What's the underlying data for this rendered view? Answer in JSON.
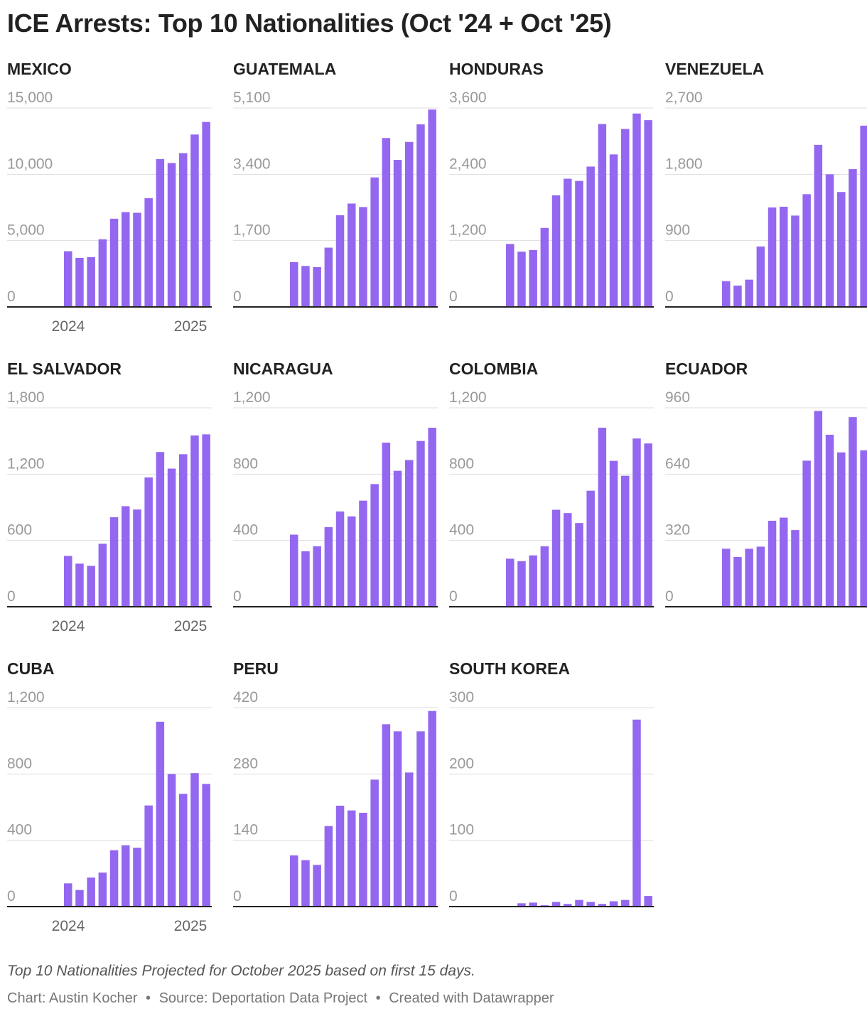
{
  "title": "ICE Arrests: Top 10 Nationalities (Oct '24 + Oct '25)",
  "note": "Top 10 Nationalities Projected for October 2025 based on first 15 days.",
  "credit": {
    "chart": "Chart: Austin Kocher",
    "separator": "•",
    "source": "Source: Deportation Data Project",
    "tool": "Created with Datawrapper"
  },
  "colors": {
    "bar": "#9467f0",
    "axis": "#222222",
    "grid": "#dddddd",
    "tick_label": "#999999",
    "year_label": "#666666"
  },
  "chart_data": [
    {
      "type": "bar",
      "title": "MEXICO",
      "y_ticks": [
        "0",
        "5,000",
        "10,000",
        "15,000"
      ],
      "ylim": [
        0,
        15000
      ],
      "x_labels": [
        "2024",
        "2025"
      ],
      "values": [
        4200,
        3700,
        3750,
        5100,
        6650,
        7150,
        7100,
        8200,
        11150,
        10850,
        11600,
        13000,
        13950
      ]
    },
    {
      "type": "bar",
      "title": "GUATEMALA",
      "y_ticks": [
        "0",
        "1,700",
        "3,400",
        "5,100"
      ],
      "ylim": [
        0,
        5100
      ],
      "x_labels": [],
      "values": [
        1150,
        1050,
        1020,
        1520,
        2350,
        2650,
        2560,
        3320,
        4330,
        3770,
        4230,
        4680,
        5060
      ]
    },
    {
      "type": "bar",
      "title": "HONDURAS",
      "y_ticks": [
        "0",
        "1,200",
        "2,400",
        "3,600"
      ],
      "ylim": [
        0,
        3600
      ],
      "x_labels": [],
      "values": [
        1140,
        1000,
        1030,
        1430,
        2020,
        2320,
        2280,
        2540,
        3310,
        2760,
        3220,
        3500,
        3380
      ]
    },
    {
      "type": "bar",
      "title": "VENEZUELA",
      "y_ticks": [
        "0",
        "900",
        "1,800",
        "2,700"
      ],
      "ylim": [
        0,
        2700
      ],
      "x_labels": [],
      "values": [
        350,
        290,
        370,
        820,
        1350,
        1360,
        1240,
        1530,
        2200,
        1800,
        1560,
        1870,
        2460
      ]
    },
    {
      "type": "bar",
      "title": "EL SALVADOR",
      "y_ticks": [
        "0",
        "600",
        "1,200",
        "1,800"
      ],
      "ylim": [
        0,
        1800
      ],
      "x_labels": [
        "2024",
        "2025"
      ],
      "values": [
        460,
        390,
        370,
        570,
        810,
        910,
        880,
        1170,
        1400,
        1250,
        1380,
        1550,
        1560
      ]
    },
    {
      "type": "bar",
      "title": "NICARAGUA",
      "y_ticks": [
        "0",
        "400",
        "800",
        "1,200"
      ],
      "ylim": [
        0,
        1200
      ],
      "x_labels": [],
      "values": [
        435,
        335,
        365,
        480,
        575,
        545,
        640,
        740,
        990,
        820,
        885,
        1000,
        1080
      ]
    },
    {
      "type": "bar",
      "title": "COLOMBIA",
      "y_ticks": [
        "0",
        "400",
        "800",
        "1,200"
      ],
      "ylim": [
        0,
        1200
      ],
      "x_labels": [],
      "values": [
        290,
        275,
        310,
        365,
        585,
        565,
        505,
        700,
        1080,
        880,
        790,
        1015,
        985
      ]
    },
    {
      "type": "bar",
      "title": "ECUADOR",
      "y_ticks": [
        "0",
        "320",
        "640",
        "960"
      ],
      "ylim": [
        0,
        960
      ],
      "x_labels": [],
      "values": [
        280,
        240,
        280,
        290,
        415,
        430,
        370,
        705,
        945,
        830,
        745,
        915,
        755
      ]
    },
    {
      "type": "bar",
      "title": "CUBA",
      "y_ticks": [
        "0",
        "400",
        "800",
        "1,200"
      ],
      "ylim": [
        0,
        1200
      ],
      "x_labels": [
        "2024",
        "2025"
      ],
      "values": [
        140,
        100,
        175,
        205,
        340,
        370,
        355,
        610,
        1115,
        800,
        680,
        805,
        740
      ]
    },
    {
      "type": "bar",
      "title": "PERU",
      "y_ticks": [
        "0",
        "140",
        "280",
        "420"
      ],
      "ylim": [
        0,
        420
      ],
      "x_labels": [],
      "values": [
        108,
        98,
        88,
        170,
        213,
        203,
        198,
        268,
        385,
        370,
        283,
        370,
        413
      ]
    },
    {
      "type": "bar",
      "title": "SOUTH KOREA",
      "y_ticks": [
        "0",
        "100",
        "200",
        "300"
      ],
      "ylim": [
        0,
        300
      ],
      "x_labels": [],
      "values": [
        0,
        5,
        6,
        2,
        7,
        4,
        10,
        7,
        4,
        8,
        10,
        282,
        16
      ]
    }
  ]
}
